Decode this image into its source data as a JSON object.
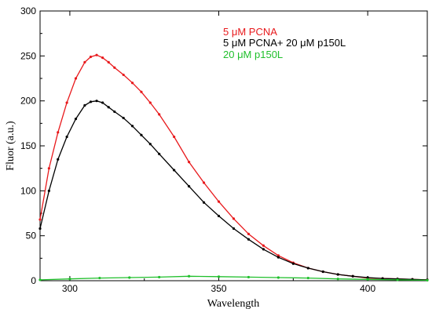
{
  "chart_data": {
    "type": "line",
    "xlabel": "Wavelength",
    "ylabel": "Fluor (a.u.)",
    "xlim": [
      290,
      420
    ],
    "ylim": [
      0,
      300
    ],
    "xticks": [
      300,
      350,
      400
    ],
    "yticks": [
      0,
      50,
      100,
      150,
      200,
      250,
      300
    ],
    "xtick_labels": [
      "300",
      "350",
      "400"
    ],
    "ytick_labels": [
      "0",
      "50",
      "100",
      "150",
      "200",
      "250",
      "300"
    ],
    "grid": false,
    "legend_position": "top-center",
    "series": [
      {
        "name": "5 μM PCNA",
        "color": "#e8191c",
        "x": [
          290,
          293,
          296,
          299,
          302,
          305,
          307,
          309,
          311,
          313,
          315,
          318,
          321,
          324,
          327,
          330,
          335,
          340,
          345,
          350,
          355,
          360,
          365,
          370,
          375,
          380,
          385,
          390,
          395,
          400,
          405,
          410,
          415,
          420
        ],
        "y": [
          68,
          125,
          165,
          198,
          225,
          243,
          249,
          251,
          248,
          243,
          237,
          229,
          220,
          210,
          198,
          185,
          160,
          132,
          109,
          88,
          69,
          52,
          39,
          28,
          20,
          14,
          10,
          7,
          5,
          3,
          2.5,
          2,
          1.5,
          1
        ]
      },
      {
        "name": "5 μM PCNA+ 20 μM p150L",
        "color": "#000000",
        "x": [
          290,
          293,
          296,
          299,
          302,
          305,
          307,
          309,
          311,
          313,
          315,
          318,
          321,
          324,
          327,
          330,
          335,
          340,
          345,
          350,
          355,
          360,
          365,
          370,
          375,
          380,
          385,
          390,
          395,
          400,
          405,
          410,
          415,
          420
        ],
        "y": [
          58,
          100,
          135,
          160,
          180,
          195,
          199,
          200,
          198,
          193,
          188,
          181,
          172,
          162,
          152,
          141,
          123,
          105,
          87,
          72,
          58,
          46,
          35,
          26,
          19,
          14,
          10,
          7,
          5,
          3.5,
          2.5,
          2,
          1.5,
          1
        ]
      },
      {
        "name": "20 μM p150L",
        "color": "#1fbf2b",
        "x": [
          290,
          300,
          310,
          320,
          330,
          340,
          350,
          360,
          370,
          380,
          390,
          400,
          410,
          420
        ],
        "y": [
          1,
          2,
          3,
          3.5,
          4,
          5,
          4.5,
          4,
          3.5,
          3,
          2,
          1.5,
          1,
          0.5
        ]
      }
    ]
  }
}
